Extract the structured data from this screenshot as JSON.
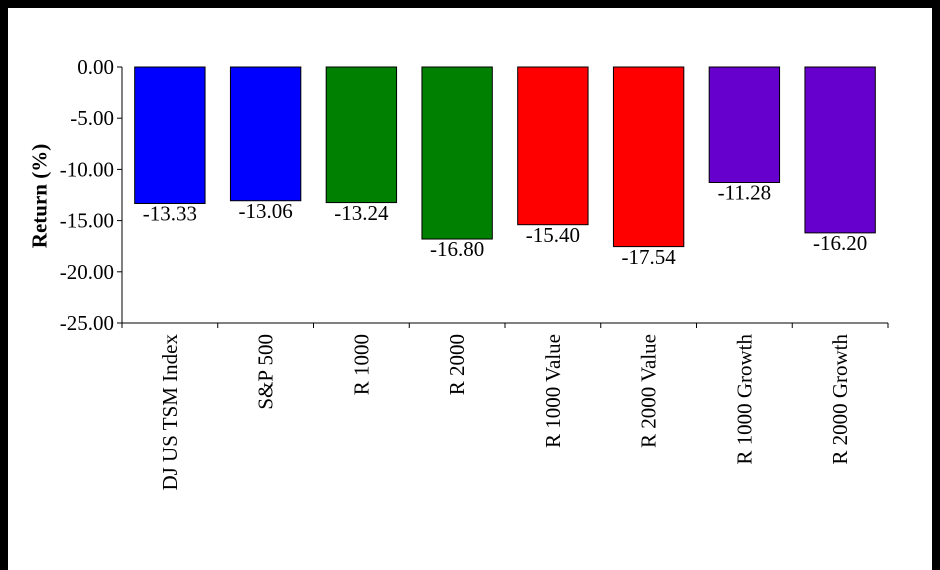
{
  "chart_data": {
    "type": "bar",
    "title": "",
    "xlabel": "",
    "ylabel": "Return (%)",
    "ylim": [
      -25,
      0
    ],
    "yticks": [
      0,
      -5,
      -10,
      -15,
      -20,
      -25
    ],
    "ytick_labels": [
      "0.00",
      "-5.00",
      "-10.00",
      "-15.00",
      "-20.00",
      "-25.00"
    ],
    "grid": false,
    "legend": "none",
    "categories": [
      "DJ US TSM Index",
      "S&P 500",
      "R 1000",
      "R 2000",
      "R 1000 Value",
      "R 2000 Value",
      "R 1000 Growth",
      "R 2000 Growth"
    ],
    "values": [
      -13.33,
      -13.06,
      -13.24,
      -16.8,
      -15.4,
      -17.54,
      -11.28,
      -16.2
    ],
    "value_labels": [
      "-13.33",
      "-13.06",
      "-13.24",
      "-16.80",
      "-15.40",
      "-17.54",
      "-11.28",
      "-16.20"
    ],
    "colors": [
      "#0000ff",
      "#0000ff",
      "#008000",
      "#008000",
      "#ff0000",
      "#ff0000",
      "#6600cc",
      "#6600cc"
    ]
  }
}
